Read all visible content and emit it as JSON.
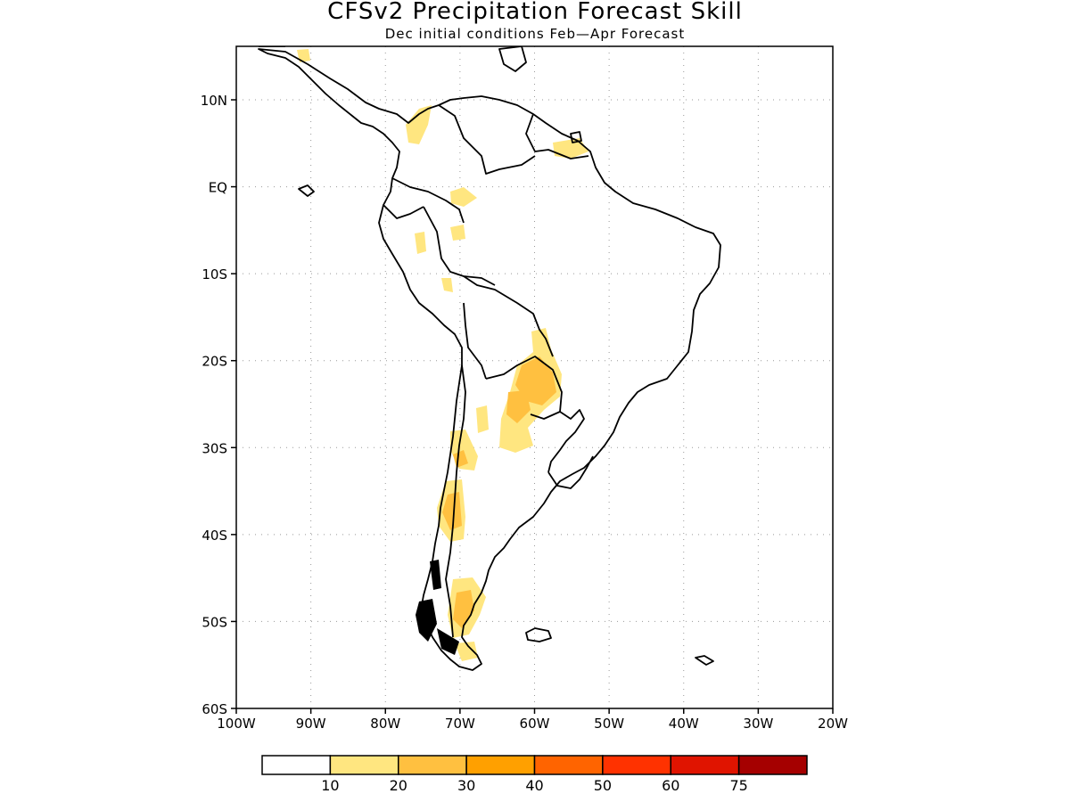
{
  "header": {
    "title": "CFSv2 Precipitation Forecast Skill",
    "subtitle": "Dec initial conditions  Feb—Apr Forecast"
  },
  "map": {
    "region": "South America",
    "lon_range": [
      -100,
      -20
    ],
    "lat_range": [
      -60,
      15
    ],
    "grid": "dotted",
    "lat_ticks": [
      {
        "value": 10,
        "label": "10N"
      },
      {
        "value": 0,
        "label": "EQ"
      },
      {
        "value": -10,
        "label": "10S"
      },
      {
        "value": -20,
        "label": "20S"
      },
      {
        "value": -30,
        "label": "30S"
      },
      {
        "value": -40,
        "label": "40S"
      },
      {
        "value": -50,
        "label": "50S"
      },
      {
        "value": -60,
        "label": "60S"
      }
    ],
    "lon_ticks": [
      {
        "value": -100,
        "label": "100W"
      },
      {
        "value": -90,
        "label": "90W"
      },
      {
        "value": -80,
        "label": "80W"
      },
      {
        "value": -70,
        "label": "70W"
      },
      {
        "value": -60,
        "label": "60W"
      },
      {
        "value": -50,
        "label": "50W"
      },
      {
        "value": -40,
        "label": "40W"
      },
      {
        "value": -30,
        "label": "30W"
      },
      {
        "value": -20,
        "label": "20W"
      }
    ],
    "land_outline_color": "#000000",
    "skill_colors": {
      "10-20": "#ffe680",
      "20-30": "#ffc040"
    }
  },
  "colorbar": {
    "colors": [
      "#ffffff",
      "#ffe680",
      "#ffc040",
      "#ffa000",
      "#ff6400",
      "#ff3200",
      "#e01400",
      "#a50000"
    ],
    "labels": [
      "10",
      "20",
      "30",
      "40",
      "50",
      "60",
      "75"
    ]
  }
}
